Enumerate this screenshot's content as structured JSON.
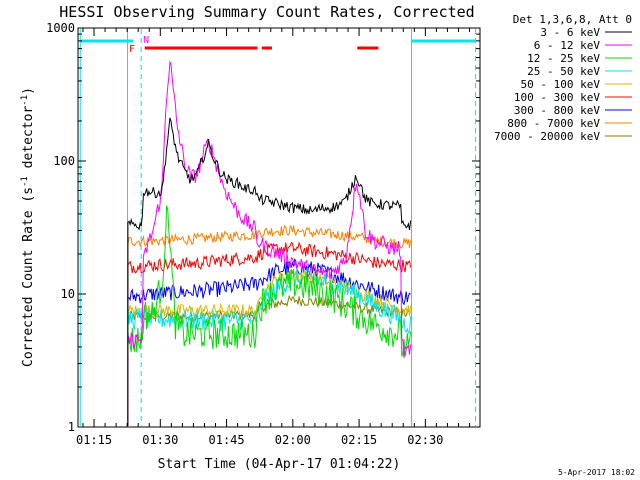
{
  "chart_data": {
    "type": "line",
    "title": "HESSI Observing Summary Count Rates, Corrected",
    "xlabel": "Start Time (04-Apr-17 01:04:22)",
    "ylabel": "Corrected Count Rate (s",
    "ylabel_sup1": "-1",
    "ylabel_mid": " detector",
    "ylabel_sup2": "-1",
    "ylabel_end": ")",
    "xlim": [
      7,
      98
    ],
    "ylim": [
      1,
      1000
    ],
    "yscale": "log",
    "x_unit": "minutes after 01:04:22",
    "x_ticks": [
      {
        "x": 10.63,
        "label": "01:15"
      },
      {
        "x": 25.63,
        "label": "01:30"
      },
      {
        "x": 40.63,
        "label": "01:45"
      },
      {
        "x": 55.63,
        "label": "02:00"
      },
      {
        "x": 70.63,
        "label": "02:15"
      },
      {
        "x": 85.63,
        "label": "02:30"
      }
    ],
    "y_ticks": [
      {
        "y": 1,
        "label": "1"
      },
      {
        "y": 10,
        "label": "10"
      },
      {
        "y": 100,
        "label": "100"
      },
      {
        "y": 1000,
        "label": "1000"
      }
    ],
    "legend_title": "Det 1,3,6,8, Att 0",
    "legend_placement": "right",
    "timestamp": "5-Apr-2017 18:02",
    "markers": {
      "N": {
        "label": "N",
        "x": 21.3,
        "color": "#ff00ff"
      },
      "F": {
        "label": "F",
        "x": 20.8,
        "color": "#ff0000"
      },
      "night_color": "#00e5e5",
      "night_bars": [
        [
          7.5,
          19.5
        ],
        [
          82.5,
          97.0
        ]
      ],
      "night_solid_lines": [
        7.5,
        18.2,
        82.5
      ],
      "night_dashed_lines": [
        21.3,
        97.0
      ],
      "flare_color": "#ff0000",
      "flare_bars": [
        [
          22.1,
          47.6
        ],
        [
          48.6,
          50.9
        ],
        [
          70.2,
          75.0
        ]
      ]
    },
    "series": [
      {
        "name": "3 - 6 keV",
        "color": "#000000",
        "noise": 0.04,
        "x": [
          18.3,
          21.5,
          21.8,
          24.0,
          26.0,
          27.0,
          27.8,
          28.5,
          29.5,
          31.0,
          32.5,
          34.0,
          35.5,
          36.6,
          37.7,
          39.5,
          41.0,
          43.0,
          45.0,
          47.3,
          47.6,
          50.0,
          55.0,
          60.0,
          62.0,
          65.0,
          67.5,
          69.0,
          70.0,
          71.0,
          72.0,
          73.5,
          76.0,
          78.0,
          80.0,
          80.3,
          82.5
        ],
        "values": [
          33,
          33,
          60,
          58,
          58,
          120,
          200,
          160,
          110,
          85,
          72,
          80,
          110,
          135,
          105,
          80,
          72,
          68,
          62,
          60,
          52,
          50,
          45,
          42,
          44,
          45,
          50,
          65,
          78,
          65,
          52,
          48,
          47,
          46,
          46,
          33,
          33
        ]
      },
      {
        "name": "6 - 12 keV",
        "color": "#ff00ff",
        "noise": 0.06,
        "x": [
          18.3,
          21.5,
          21.8,
          22.5,
          24.0,
          26.0,
          27.0,
          27.8,
          28.5,
          29.5,
          31.0,
          32.5,
          34.0,
          35.5,
          36.6,
          37.7,
          39.5,
          41.0,
          43.0,
          45.0,
          47.0,
          47.6,
          50.0,
          55.0,
          60.0,
          64.0,
          67.5,
          69.0,
          70.0,
          71.0,
          72.0,
          74.0,
          76.0,
          78.0,
          80.0,
          80.3,
          81.0,
          82.5
        ],
        "values": [
          4.5,
          4.5,
          17,
          22,
          30,
          60,
          300,
          580,
          350,
          180,
          100,
          75,
          80,
          115,
          140,
          110,
          70,
          55,
          42,
          35,
          31,
          25,
          22,
          18,
          15,
          14,
          18,
          40,
          75,
          50,
          30,
          25,
          24,
          22,
          22,
          4.5,
          3.5,
          4
        ]
      },
      {
        "name": "12 - 25 keV",
        "color": "#00dd00",
        "noise": 0.12,
        "x": [
          18.3,
          21.5,
          21.8,
          24.0,
          26.0,
          27.0,
          27.5,
          28.2,
          29.0,
          31.0,
          34.0,
          37.0,
          40.0,
          43.0,
          45.0,
          47.0,
          47.6,
          49.0,
          52.0,
          56.0,
          60.0,
          64.0,
          68.0,
          72.0,
          76.0,
          80.0,
          80.3,
          82.5
        ],
        "values": [
          4.5,
          4.5,
          7,
          7,
          12,
          35,
          42,
          15,
          6,
          5,
          5,
          5,
          5,
          5,
          5,
          5,
          7,
          9,
          11,
          12,
          11,
          10,
          8,
          6.5,
          5.5,
          5,
          4,
          4
        ]
      },
      {
        "name": "25 - 50 keV",
        "color": "#00e5e5",
        "noise": 0.08,
        "x": [
          18.3,
          21.5,
          21.8,
          28.0,
          34.0,
          40.0,
          47.6,
          48.5,
          52.0,
          56.0,
          60.0,
          65.0,
          70.0,
          75.0,
          80.0,
          80.3,
          82.5
        ],
        "values": [
          6.5,
          6.5,
          6.5,
          6.5,
          6.3,
          6.3,
          6.5,
          8.5,
          11,
          13,
          13,
          12,
          10,
          8,
          6.5,
          6,
          6
        ]
      },
      {
        "name": "50 - 100 keV",
        "color": "#d9b800",
        "noise": 0.05,
        "x": [
          18.3,
          21.8,
          34.0,
          47.6,
          48.5,
          52.0,
          56.0,
          60.0,
          65.0,
          70.0,
          75.0,
          80.0,
          82.5
        ],
        "values": [
          7.5,
          7.5,
          7.5,
          7.5,
          10,
          13,
          14,
          13.5,
          12,
          10.5,
          9,
          7.8,
          7.5
        ]
      },
      {
        "name": "100 - 300 keV",
        "color": "#ff0000",
        "noise": 0.05,
        "x": [
          18.3,
          24.0,
          34.0,
          40.0,
          47.6,
          48.0,
          52.0,
          56.0,
          60.0,
          65.0,
          70.0,
          75.0,
          80.0,
          82.5
        ],
        "values": [
          16,
          16.5,
          17,
          18,
          19,
          20,
          22,
          22,
          21,
          20,
          18.5,
          17,
          16.5,
          16
        ]
      },
      {
        "name": "300 - 800 keV",
        "color": "#0000ff",
        "noise": 0.06,
        "x": [
          18.3,
          24.0,
          34.0,
          40.0,
          47.6,
          48.0,
          52.0,
          56.0,
          60.0,
          65.0,
          70.0,
          75.0,
          80.0,
          82.5
        ],
        "values": [
          9.5,
          10,
          10.5,
          11,
          12,
          12.5,
          15,
          16,
          15.5,
          14,
          12,
          10.5,
          9.5,
          9.5
        ]
      },
      {
        "name": "800 - 7000 keV",
        "color": "#ff8000",
        "noise": 0.04,
        "x": [
          18.3,
          24.0,
          34.0,
          40.0,
          47.6,
          48.0,
          52.0,
          56.0,
          60.0,
          65.0,
          70.0,
          75.0,
          80.0,
          82.5
        ],
        "values": [
          25,
          25,
          26,
          27,
          28,
          29,
          30,
          30,
          29,
          28,
          27,
          25,
          24,
          24
        ]
      },
      {
        "name": "7000 - 20000 keV",
        "color": "#808000",
        "noise": 0.04,
        "x": [
          18.3,
          34.0,
          47.6,
          48.0,
          56.0,
          65.0,
          75.0,
          82.5
        ],
        "values": [
          6.8,
          6.8,
          7,
          8,
          9,
          8.5,
          7.5,
          7
        ]
      }
    ]
  }
}
